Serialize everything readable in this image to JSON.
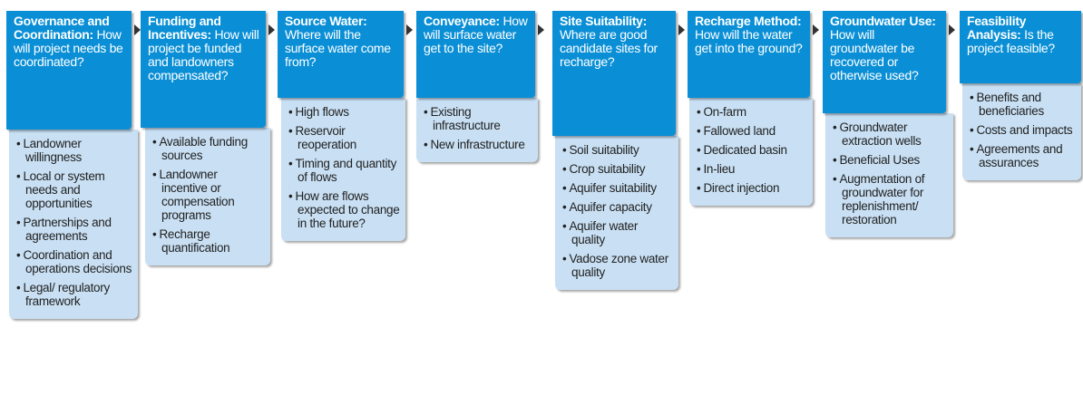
{
  "steps": [
    {
      "title": "Governance and Coordination:",
      "question": "How will project needs be coordinated?",
      "items": [
        "Landowner willingness",
        "Local or system needs and opportunities",
        "Partnerships and agreements",
        "Coordination and operations decisions",
        "Legal/ regulatory framework"
      ]
    },
    {
      "title": "Funding and Incentives:",
      "question": "How will project be funded and landowners compensated?",
      "items": [
        "Available funding sources",
        "Landowner incentive or compensation programs",
        "Recharge quantification"
      ]
    },
    {
      "title": "Source Water:",
      "question": "Where will the surface water come from?",
      "items": [
        "High flows",
        "Reservoir reoperation",
        "Timing and quantity of flows",
        "How are flows expected to change in the future?"
      ]
    },
    {
      "title": "Conveyance:",
      "question": "How will surface water get to the site?",
      "items": [
        "Existing infrastructure",
        "New infrastructure"
      ]
    },
    {
      "title": "Site Suitability:",
      "question": "Where are good candidate sites for recharge?",
      "items": [
        "Soil suitability",
        "Crop suitability",
        "Aquifer suitability",
        "Aquifer capacity",
        "Aquifer water quality",
        "Vadose zone water quality"
      ]
    },
    {
      "title": "Recharge Method:",
      "question": "How will the water get into the ground?",
      "items": [
        "On-farm",
        "Fallowed land",
        "Dedicated basin",
        "In-lieu",
        "Direct injection"
      ]
    },
    {
      "title": "Groundwater Use:",
      "question": "How will groundwater be recovered or otherwise used?",
      "items": [
        "Groundwater extraction wells",
        "Beneficial Uses",
        "Augmentation of groundwater for replenishment/ restoration"
      ]
    },
    {
      "title": "Feasibility Analysis:",
      "question": "Is the project feasible?",
      "items": [
        "Benefits and beneficiaries",
        "Costs and impacts",
        "Agreements and assurances"
      ]
    }
  ]
}
